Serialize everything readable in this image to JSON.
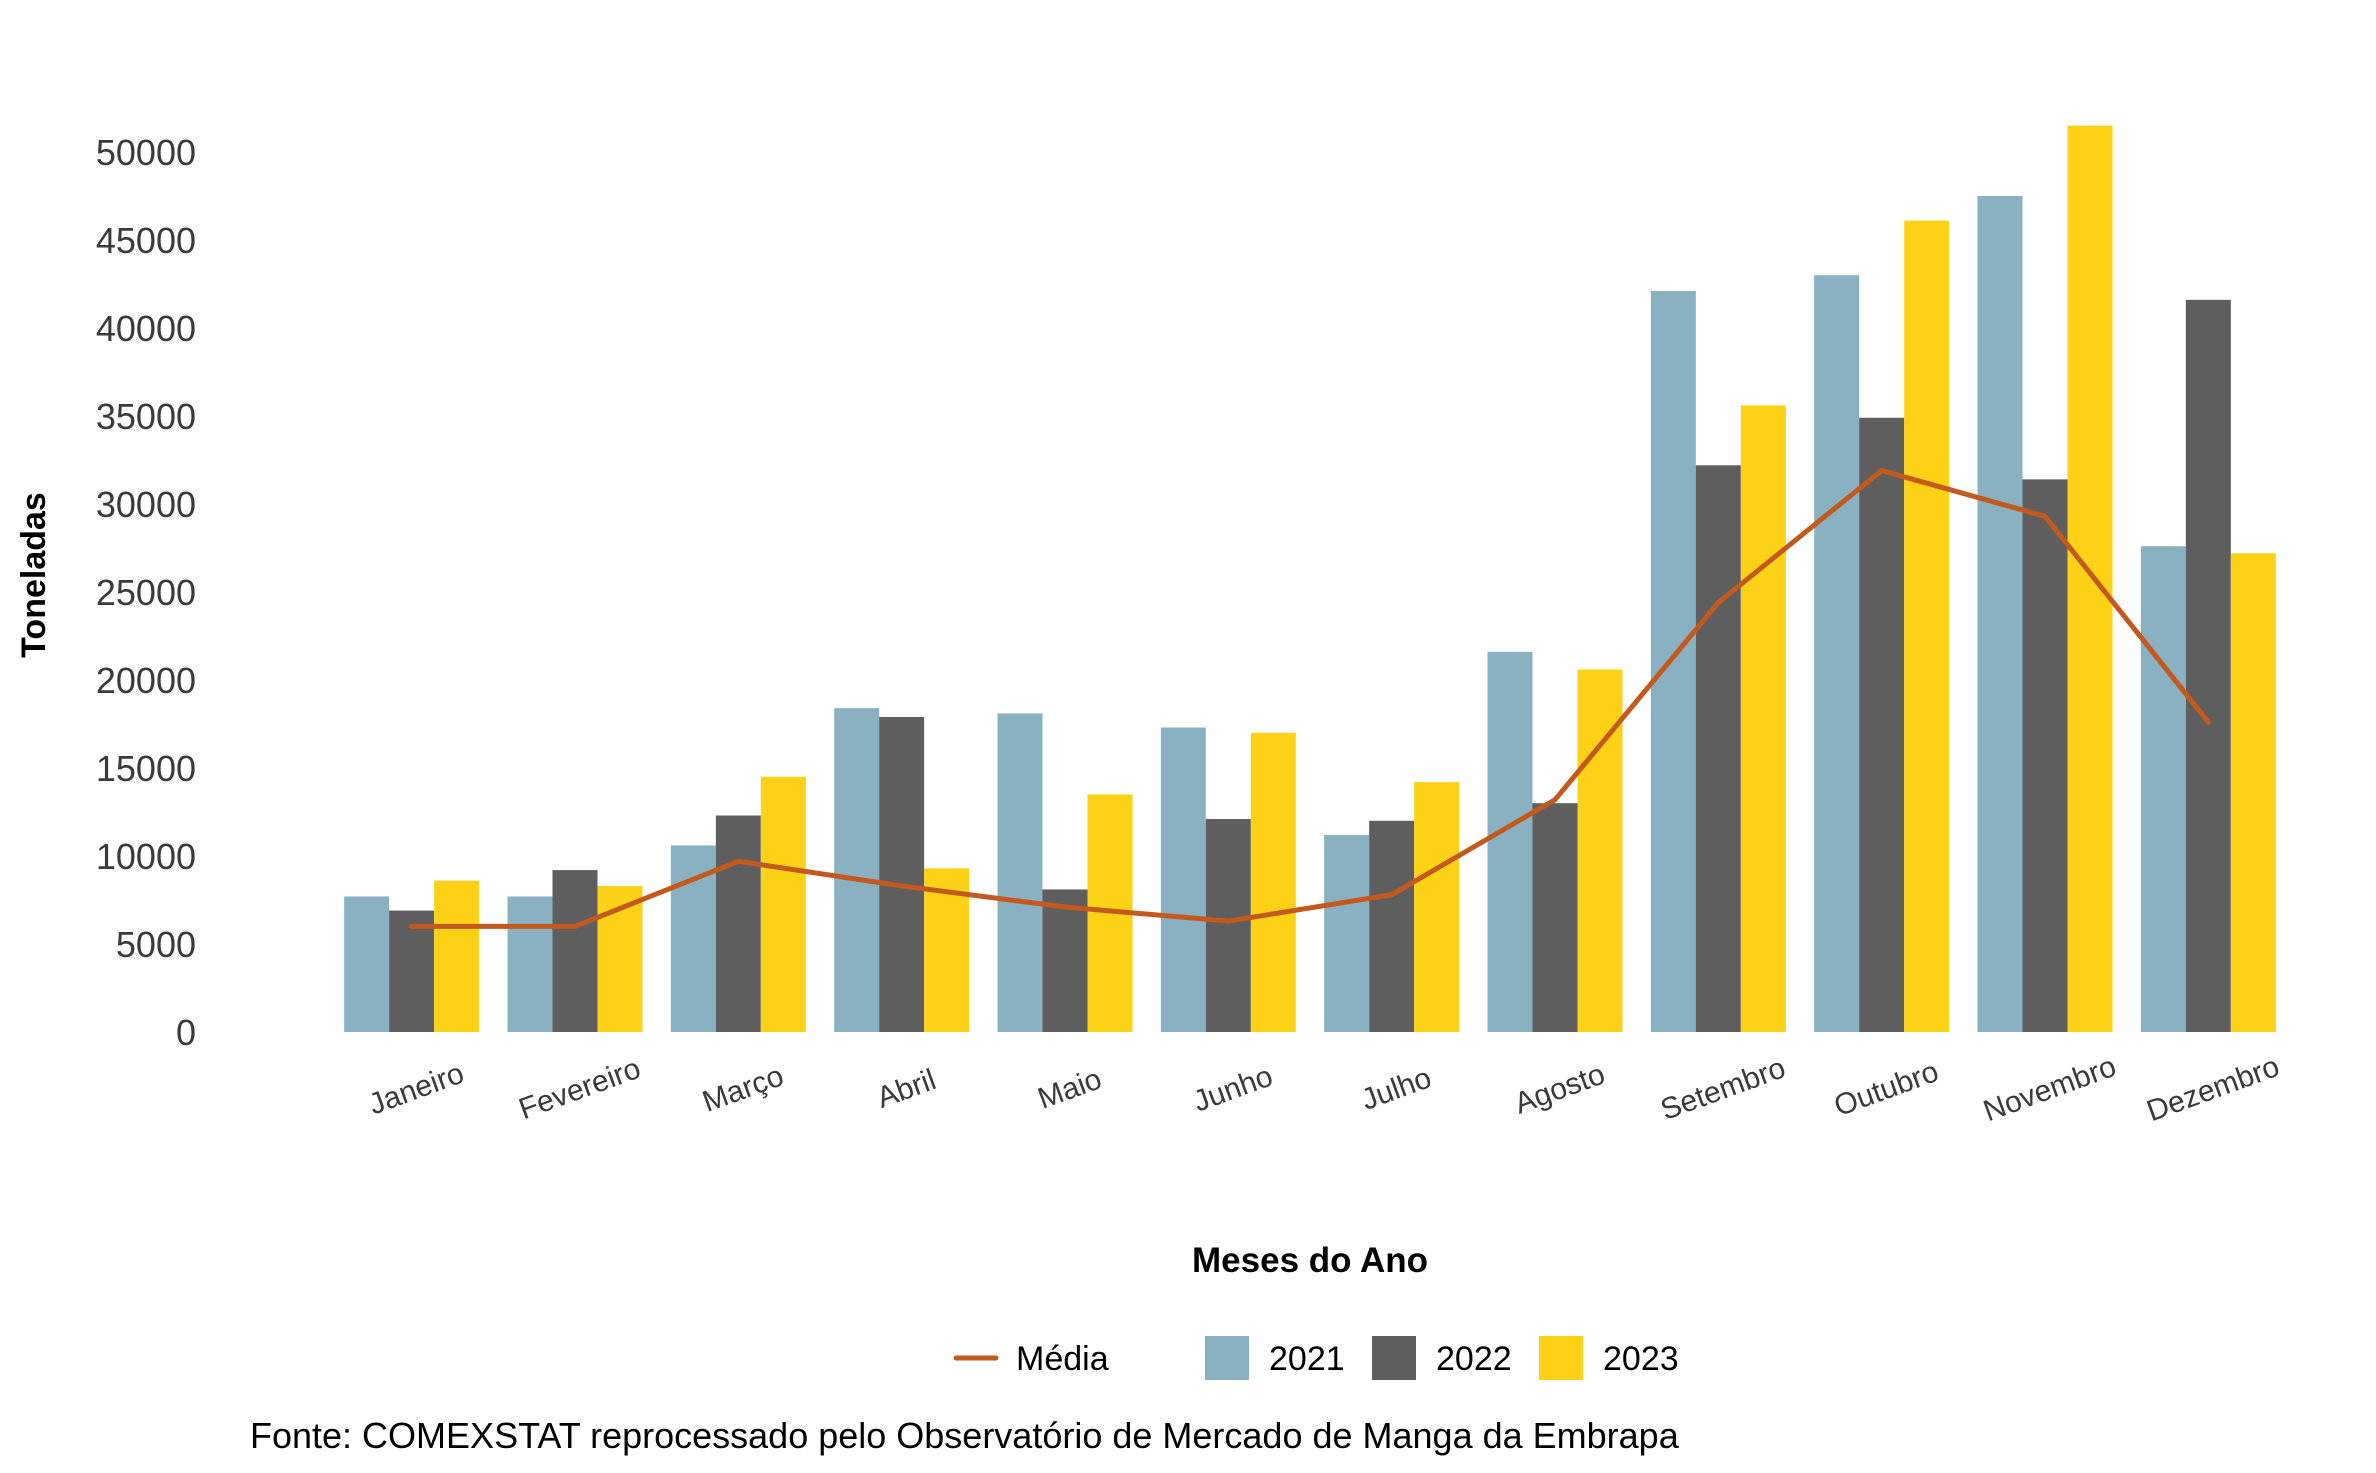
{
  "chart_data": {
    "type": "bar",
    "title": "",
    "xlabel": "Meses do Ano",
    "ylabel": "Toneladas",
    "ylim": [
      0,
      52000
    ],
    "yticks": [
      0,
      5000,
      10000,
      15000,
      20000,
      25000,
      30000,
      35000,
      40000,
      45000,
      50000
    ],
    "grid": false,
    "legend_position": "bottom",
    "categories": [
      "Janeiro",
      "Fevereiro",
      "Março",
      "Abril",
      "Maio",
      "Junho",
      "Julho",
      "Agosto",
      "Setembro",
      "Outubro",
      "Novembro",
      "Dezembro"
    ],
    "series": [
      {
        "name": "2021",
        "color": "#8AB1C2",
        "values": [
          7700,
          7700,
          10600,
          18400,
          18100,
          17300,
          11200,
          21600,
          42100,
          43000,
          47500,
          27600
        ]
      },
      {
        "name": "2022",
        "color": "#5E5E5E",
        "values": [
          6900,
          9200,
          12300,
          17900,
          8100,
          12100,
          12000,
          13000,
          32200,
          34900,
          31400,
          41600
        ]
      },
      {
        "name": "2023",
        "color": "#FCD116",
        "values": [
          8600,
          8300,
          14500,
          9300,
          13500,
          17000,
          14200,
          20600,
          35600,
          46100,
          51500,
          27200
        ]
      }
    ],
    "line": {
      "name": "Média",
      "color": "#C4591D",
      "values": [
        6000,
        6000,
        9700,
        8300,
        7100,
        6300,
        7800,
        13200,
        24400,
        31900,
        29300,
        17600
      ]
    },
    "source": "Fonte: COMEXSTAT reprocessado pelo Observatório de Mercado de Manga da Embrapa"
  }
}
